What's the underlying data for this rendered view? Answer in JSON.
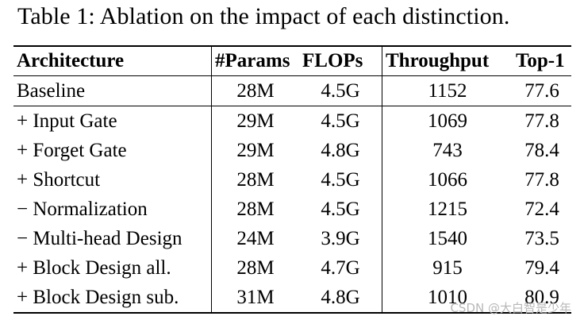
{
  "caption": "Table 1: Ablation on the impact of each distinction.",
  "headers": [
    "Architecture",
    "#Params",
    "FLOPs",
    "Throughput",
    "Top-1"
  ],
  "rows": [
    [
      "Baseline",
      "28M",
      "4.5G",
      "1152",
      "77.6"
    ],
    [
      "+ Input Gate",
      "29M",
      "4.5G",
      "1069",
      "77.8"
    ],
    [
      "+ Forget Gate",
      "29M",
      "4.8G",
      "743",
      "78.4"
    ],
    [
      "+ Shortcut",
      "28M",
      "4.5G",
      "1066",
      "77.8"
    ],
    [
      "− Normalization",
      "28M",
      "4.5G",
      "1215",
      "72.4"
    ],
    [
      "− Multi-head Design",
      "24M",
      "3.9G",
      "1540",
      "73.5"
    ],
    [
      "+ Block Design all.",
      "28M",
      "4.7G",
      "915",
      "79.4"
    ],
    [
      "+ Block Design sub.",
      "31M",
      "4.8G",
      "1010",
      "80.9"
    ]
  ],
  "watermark": "CSDN @大白智是少年"
}
